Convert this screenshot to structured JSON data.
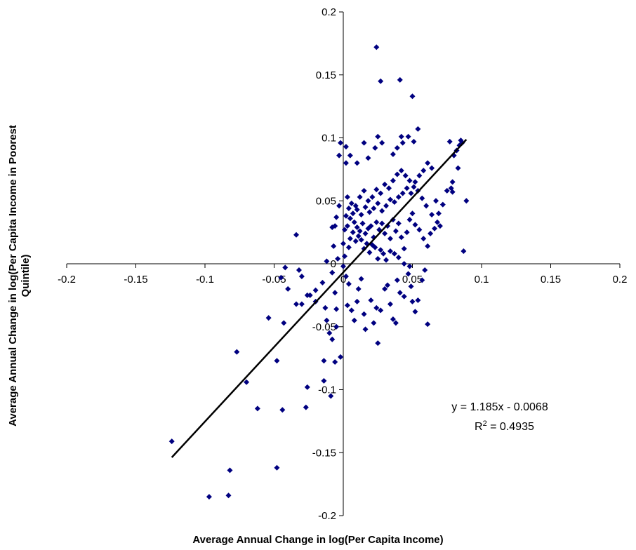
{
  "chart_data": {
    "type": "scatter",
    "title": "",
    "xlabel": "Average Annual Change in log(Per Capita Income)",
    "ylabel_line1": "Average Annual Change in log(Per Capita Income in Poorest",
    "ylabel_line2": "Quintile)",
    "xlim": [
      -0.2,
      0.2
    ],
    "ylim": [
      -0.2,
      0.2
    ],
    "x_ticks": [
      "-0.2",
      "-0.15",
      "-0.1",
      "-0.05",
      "0",
      "0.05",
      "0.1",
      "0.15",
      "0.2"
    ],
    "y_ticks": [
      "0.2",
      "0.15",
      "0.1",
      "0.05",
      "0",
      "-0.05",
      "-0.1",
      "-0.15",
      "-0.2"
    ],
    "grid": false,
    "legend": "none",
    "marker_color": "#000080",
    "trendline": {
      "slope": 1.185,
      "intercept": -0.0068,
      "x_range": [
        -0.124,
        0.089
      ],
      "color": "#000000",
      "equation_label": "y = 1.185x - 0.0068",
      "r2_prefix": "R",
      "r2_sup": "2",
      "r2_value": " = 0.4935"
    },
    "points": [
      [
        -0.124,
        -0.141
      ],
      [
        -0.097,
        -0.185
      ],
      [
        -0.083,
        -0.184
      ],
      [
        -0.082,
        -0.164
      ],
      [
        -0.048,
        -0.162
      ],
      [
        -0.077,
        -0.07
      ],
      [
        -0.07,
        -0.094
      ],
      [
        -0.062,
        -0.115
      ],
      [
        -0.044,
        -0.116
      ],
      [
        -0.027,
        -0.114
      ],
      [
        -0.026,
        -0.098
      ],
      [
        -0.014,
        -0.093
      ],
      [
        -0.009,
        -0.105
      ],
      [
        -0.002,
        -0.074
      ],
      [
        -0.006,
        -0.078
      ],
      [
        -0.014,
        -0.077
      ],
      [
        -0.048,
        -0.077
      ],
      [
        -0.054,
        -0.043
      ],
      [
        -0.043,
        -0.047
      ],
      [
        -0.034,
        -0.032
      ],
      [
        -0.03,
        -0.032
      ],
      [
        -0.024,
        -0.025
      ],
      [
        -0.02,
        -0.03
      ],
      [
        -0.013,
        -0.035
      ],
      [
        -0.012,
        -0.045
      ],
      [
        -0.01,
        -0.055
      ],
      [
        -0.008,
        -0.06
      ],
      [
        -0.005,
        -0.05
      ],
      [
        -0.005,
        -0.036
      ],
      [
        -0.006,
        -0.023
      ],
      [
        -0.015,
        -0.015
      ],
      [
        -0.02,
        -0.021
      ],
      [
        -0.026,
        -0.025
      ],
      [
        -0.03,
        -0.01
      ],
      [
        -0.04,
        -0.02
      ],
      [
        -0.045,
        -0.011
      ],
      [
        -0.042,
        -0.003
      ],
      [
        -0.032,
        -0.005
      ],
      [
        -0.034,
        0.023
      ],
      [
        -0.012,
        0.002
      ],
      [
        -0.004,
        0.004
      ],
      [
        -0.008,
        -0.007
      ],
      [
        0.0,
        -0.002
      ],
      [
        0.002,
        -0.01
      ],
      [
        0.004,
        -0.016
      ],
      [
        0.003,
        -0.033
      ],
      [
        0.006,
        -0.037
      ],
      [
        0.008,
        -0.045
      ],
      [
        0.01,
        -0.03
      ],
      [
        0.011,
        -0.02
      ],
      [
        0.013,
        -0.012
      ],
      [
        0.015,
        -0.04
      ],
      [
        0.016,
        -0.052
      ],
      [
        0.02,
        -0.029
      ],
      [
        0.022,
        -0.047
      ],
      [
        0.024,
        -0.035
      ],
      [
        0.025,
        -0.063
      ],
      [
        0.027,
        -0.037
      ],
      [
        0.03,
        -0.02
      ],
      [
        0.032,
        -0.017
      ],
      [
        0.034,
        -0.032
      ],
      [
        0.036,
        -0.044
      ],
      [
        0.038,
        -0.047
      ],
      [
        0.039,
        -0.013
      ],
      [
        0.041,
        -0.023
      ],
      [
        0.044,
        -0.026
      ],
      [
        0.047,
        -0.008
      ],
      [
        0.049,
        -0.018
      ],
      [
        0.05,
        -0.03
      ],
      [
        0.052,
        -0.038
      ],
      [
        0.054,
        -0.029
      ],
      [
        0.057,
        -0.013
      ],
      [
        0.059,
        -0.005
      ],
      [
        0.061,
        -0.048
      ],
      [
        0.048,
        -0.002
      ],
      [
        0.044,
        0.0
      ],
      [
        0.04,
        0.005
      ],
      [
        0.037,
        0.008
      ],
      [
        0.034,
        0.01
      ],
      [
        0.031,
        0.003
      ],
      [
        0.029,
        0.008
      ],
      [
        0.027,
        0.011
      ],
      [
        0.025,
        0.004
      ],
      [
        0.023,
        0.013
      ],
      [
        0.021,
        0.015
      ],
      [
        0.019,
        0.009
      ],
      [
        0.017,
        0.016
      ],
      [
        0.015,
        0.012
      ],
      [
        0.013,
        0.019
      ],
      [
        0.011,
        0.022
      ],
      [
        0.009,
        0.018
      ],
      [
        0.007,
        0.025
      ],
      [
        0.005,
        0.02
      ],
      [
        0.004,
        0.013
      ],
      [
        0.003,
        0.03
      ],
      [
        0.005,
        0.036
      ],
      [
        0.008,
        0.033
      ],
      [
        0.01,
        0.029
      ],
      [
        0.012,
        0.026
      ],
      [
        0.014,
        0.032
      ],
      [
        0.016,
        0.024
      ],
      [
        0.018,
        0.028
      ],
      [
        0.02,
        0.03
      ],
      [
        0.022,
        0.021
      ],
      [
        0.024,
        0.033
      ],
      [
        0.026,
        0.027
      ],
      [
        0.028,
        0.032
      ],
      [
        0.03,
        0.024
      ],
      [
        0.032,
        0.03
      ],
      [
        0.034,
        0.02
      ],
      [
        0.036,
        0.035
      ],
      [
        0.038,
        0.026
      ],
      [
        0.04,
        0.032
      ],
      [
        0.042,
        0.021
      ],
      [
        0.044,
        0.012
      ],
      [
        0.046,
        0.025
      ],
      [
        0.048,
        0.035
      ],
      [
        0.05,
        0.04
      ],
      [
        0.052,
        0.031
      ],
      [
        0.055,
        0.027
      ],
      [
        0.058,
        0.02
      ],
      [
        0.061,
        0.014
      ],
      [
        0.063,
        0.024
      ],
      [
        0.066,
        0.028
      ],
      [
        0.068,
        0.033
      ],
      [
        0.07,
        0.03
      ],
      [
        0.072,
        0.047
      ],
      [
        0.064,
        0.039
      ],
      [
        0.06,
        0.046
      ],
      [
        0.057,
        0.052
      ],
      [
        0.054,
        0.058
      ],
      [
        0.051,
        0.061
      ],
      [
        0.048,
        0.066
      ],
      [
        0.045,
        0.07
      ],
      [
        0.042,
        0.074
      ],
      [
        0.039,
        0.071
      ],
      [
        0.036,
        0.066
      ],
      [
        0.033,
        0.06
      ],
      [
        0.03,
        0.063
      ],
      [
        0.027,
        0.056
      ],
      [
        0.024,
        0.059
      ],
      [
        0.021,
        0.053
      ],
      [
        0.018,
        0.05
      ],
      [
        0.015,
        0.058
      ],
      [
        0.012,
        0.053
      ],
      [
        0.009,
        0.046
      ],
      [
        0.006,
        0.048
      ],
      [
        0.003,
        0.053
      ],
      [
        0.002,
        0.038
      ],
      [
        0.004,
        0.044
      ],
      [
        0.007,
        0.04
      ],
      [
        0.01,
        0.043
      ],
      [
        0.013,
        0.039
      ],
      [
        0.016,
        0.045
      ],
      [
        0.019,
        0.041
      ],
      [
        0.022,
        0.044
      ],
      [
        0.025,
        0.048
      ],
      [
        0.028,
        0.042
      ],
      [
        0.031,
        0.046
      ],
      [
        0.034,
        0.051
      ],
      [
        0.037,
        0.049
      ],
      [
        0.04,
        0.053
      ],
      [
        0.043,
        0.056
      ],
      [
        0.046,
        0.06
      ],
      [
        0.049,
        0.056
      ],
      [
        0.052,
        0.065
      ],
      [
        0.055,
        0.07
      ],
      [
        0.058,
        0.074
      ],
      [
        0.061,
        0.08
      ],
      [
        0.064,
        0.076
      ],
      [
        0.067,
        0.05
      ],
      [
        0.069,
        0.04
      ],
      [
        0.075,
        0.058
      ],
      [
        0.078,
        0.06
      ],
      [
        0.079,
        0.065
      ],
      [
        0.077,
        0.097
      ],
      [
        0.08,
        0.086
      ],
      [
        0.082,
        0.09
      ],
      [
        0.084,
        0.094
      ],
      [
        0.085,
        0.098
      ],
      [
        0.083,
        0.076
      ],
      [
        0.086,
        0.096
      ],
      [
        0.087,
        0.01
      ],
      [
        0.089,
        0.05
      ],
      [
        0.079,
        0.057
      ],
      [
        0.043,
        0.096
      ],
      [
        0.039,
        0.092
      ],
      [
        0.047,
        0.101
      ],
      [
        0.054,
        0.107
      ],
      [
        0.051,
        0.097
      ],
      [
        0.042,
        0.101
      ],
      [
        0.036,
        0.087
      ],
      [
        0.028,
        0.096
      ],
      [
        0.023,
        0.092
      ],
      [
        0.025,
        0.101
      ],
      [
        0.018,
        0.084
      ],
      [
        0.015,
        0.096
      ],
      [
        0.01,
        0.08
      ],
      [
        0.005,
        0.086
      ],
      [
        0.002,
        0.093
      ],
      [
        -0.002,
        0.096
      ],
      [
        -0.003,
        0.086
      ],
      [
        0.002,
        0.08
      ],
      [
        0.041,
        0.146
      ],
      [
        0.027,
        0.145
      ],
      [
        0.024,
        0.172
      ],
      [
        0.05,
        0.133
      ],
      [
        -0.003,
        0.046
      ],
      [
        -0.005,
        0.037
      ],
      [
        -0.006,
        0.03
      ],
      [
        -0.008,
        0.029
      ],
      [
        -0.007,
        0.014
      ],
      [
        0.001,
        0.006
      ],
      [
        0.0,
        0.016
      ],
      [
        0.001,
        0.027
      ]
    ]
  }
}
